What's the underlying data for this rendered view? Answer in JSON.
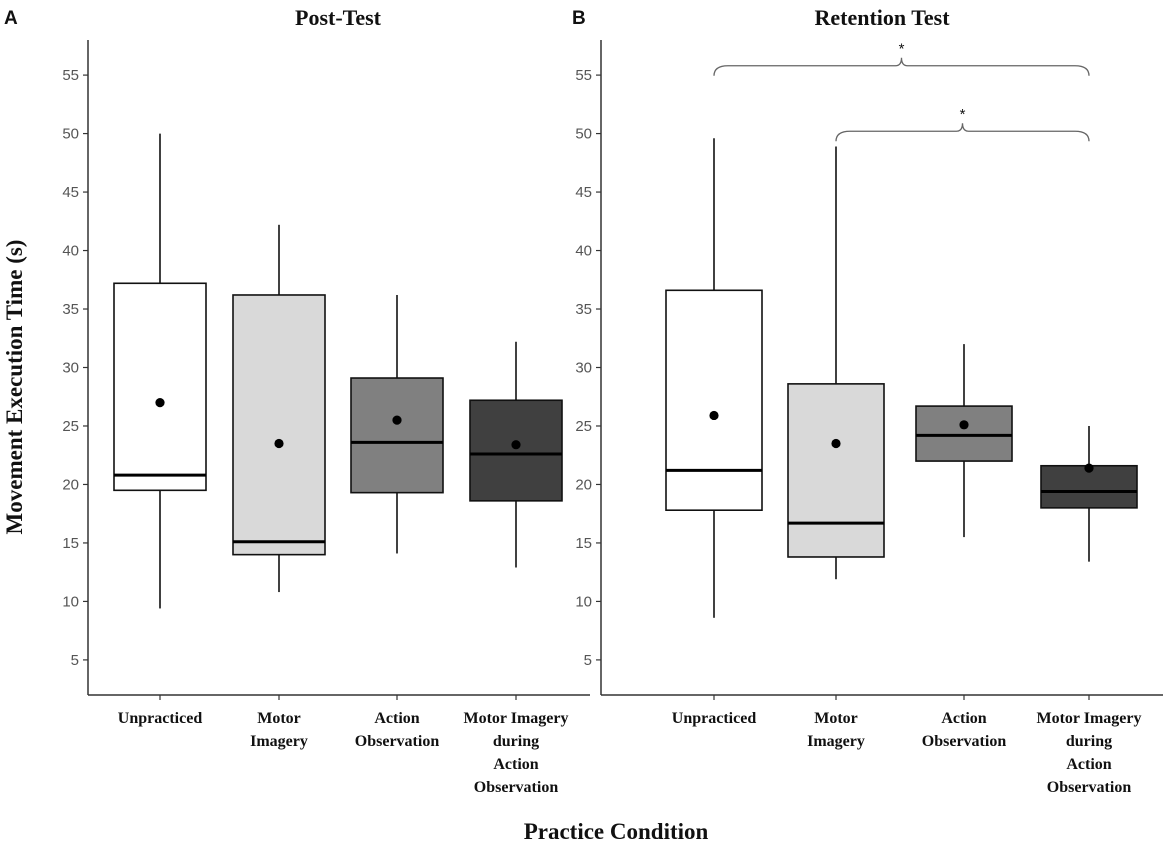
{
  "figure": {
    "ylabel": "Movement Execution Time (s)",
    "xlabel": "Practice Condition"
  },
  "chart_data": [
    {
      "type": "box",
      "panel": "A",
      "title": "Post-Test",
      "yticks": [
        5,
        10,
        15,
        20,
        25,
        30,
        35,
        40,
        45,
        50,
        55
      ],
      "ylim": [
        2,
        58
      ],
      "categories": [
        [
          "Unpracticed"
        ],
        [
          "Motor",
          "Imagery"
        ],
        [
          "Action",
          "Observation"
        ],
        [
          "Motor Imagery",
          "during",
          "Action",
          "Observation"
        ]
      ],
      "boxes": [
        {
          "condition": "Unpracticed",
          "whisker_low": 9.4,
          "q1": 19.5,
          "median": 20.8,
          "q3": 37.2,
          "whisker_high": 50.0,
          "mean": 27.0,
          "fill": "#ffffff"
        },
        {
          "condition": "Motor Imagery",
          "whisker_low": 10.8,
          "q1": 14.0,
          "median": 15.1,
          "q3": 36.2,
          "whisker_high": 42.2,
          "mean": 23.5,
          "fill": "#d9d9d9"
        },
        {
          "condition": "Action Observation",
          "whisker_low": 14.1,
          "q1": 19.3,
          "median": 23.6,
          "q3": 29.1,
          "whisker_high": 36.2,
          "mean": 25.5,
          "fill": "#808080"
        },
        {
          "condition": "Motor Imagery during Action Observation",
          "whisker_low": 12.9,
          "q1": 18.6,
          "median": 22.6,
          "q3": 27.2,
          "whisker_high": 32.2,
          "mean": 23.4,
          "fill": "#404040"
        }
      ],
      "annotations": []
    },
    {
      "type": "box",
      "panel": "B",
      "title": "Retention Test",
      "yticks": [
        5,
        10,
        15,
        20,
        25,
        30,
        35,
        40,
        45,
        50,
        55
      ],
      "ylim": [
        2,
        58
      ],
      "categories": [
        [
          "Unpracticed"
        ],
        [
          "Motor",
          "Imagery"
        ],
        [
          "Action",
          "Observation"
        ],
        [
          "Motor Imagery",
          "during",
          "Action",
          "Observation"
        ]
      ],
      "boxes": [
        {
          "condition": "Unpracticed",
          "whisker_low": 8.6,
          "q1": 17.8,
          "median": 21.2,
          "q3": 36.6,
          "whisker_high": 49.6,
          "mean": 25.9,
          "fill": "#ffffff"
        },
        {
          "condition": "Motor Imagery",
          "whisker_low": 11.9,
          "q1": 13.8,
          "median": 16.7,
          "q3": 28.6,
          "whisker_high": 48.9,
          "mean": 23.5,
          "fill": "#d9d9d9"
        },
        {
          "condition": "Action Observation",
          "whisker_low": 15.5,
          "q1": 22.0,
          "median": 24.2,
          "q3": 26.7,
          "whisker_high": 32.0,
          "mean": 25.1,
          "fill": "#808080"
        },
        {
          "condition": "Motor Imagery during Action Observation",
          "whisker_low": 13.4,
          "q1": 18.0,
          "median": 19.4,
          "q3": 21.6,
          "whisker_high": 25.0,
          "mean": 21.4,
          "fill": "#404040"
        }
      ],
      "annotations": [
        {
          "from": 0,
          "to": 3,
          "y": 55.8,
          "label": "*"
        },
        {
          "from": 1,
          "to": 3,
          "y": 50.2,
          "label": "*"
        }
      ]
    }
  ]
}
